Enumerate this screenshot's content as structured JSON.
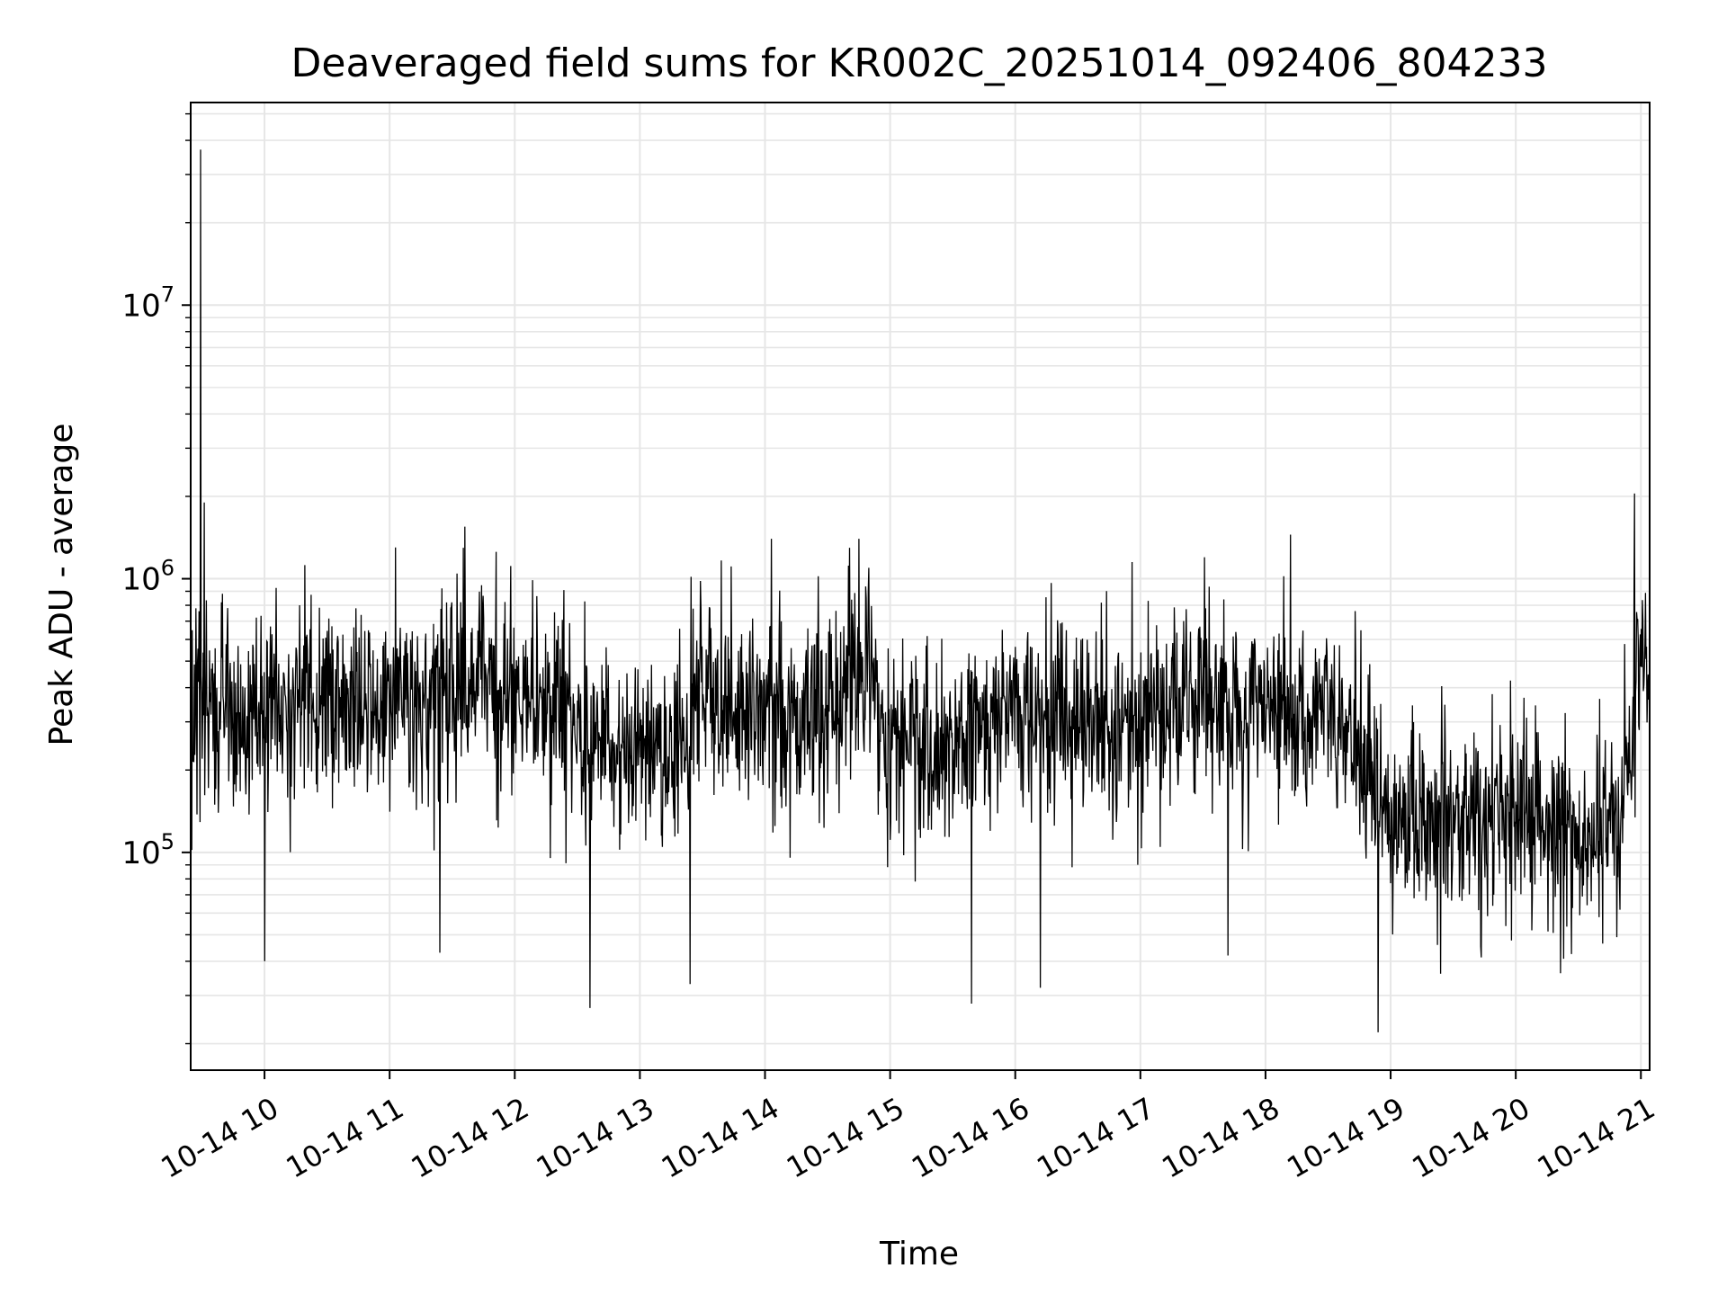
{
  "chart_data": {
    "type": "line",
    "title": "Deaveraged field sums for KR002C_20251014_092406_804233",
    "xlabel": "Time",
    "ylabel": "Peak ADU - average",
    "yscale": "log",
    "ylim": [
      16000,
      55000000
    ],
    "xlim_hours": [
      9.41,
      21.07
    ],
    "x_ticks": [
      {
        "hour": 10,
        "label": "10-14 10"
      },
      {
        "hour": 11,
        "label": "10-14 11"
      },
      {
        "hour": 12,
        "label": "10-14 12"
      },
      {
        "hour": 13,
        "label": "10-14 13"
      },
      {
        "hour": 14,
        "label": "10-14 14"
      },
      {
        "hour": 15,
        "label": "10-14 15"
      },
      {
        "hour": 16,
        "label": "10-14 16"
      },
      {
        "hour": 17,
        "label": "10-14 17"
      },
      {
        "hour": 18,
        "label": "10-14 18"
      },
      {
        "hour": 19,
        "label": "10-14 19"
      },
      {
        "hour": 20,
        "label": "10-14 20"
      },
      {
        "hour": 21,
        "label": "10-14 21"
      }
    ],
    "y_major_ticks": [
      {
        "value": 100000,
        "base": "10",
        "exp": "5"
      },
      {
        "value": 1000000,
        "base": "10",
        "exp": "6"
      },
      {
        "value": 10000000,
        "base": "10",
        "exp": "7"
      }
    ],
    "grid": true,
    "series": [
      {
        "name": "Peak ADU - average",
        "color": "#000000",
        "description": "Noisy time series sampled roughly every 15 s from about 09:24 to 21:04; typical values 2e5-6e5, spike to ~3.7e7 near 09:29, dips down to ~2.2e4 near 18:55, lower level (~1.3e5) between 19:00 and 20:50, rising to ~5e5 after 20:55.",
        "level_profile": [
          {
            "hour": 9.41,
            "median": 320000
          },
          {
            "hour": 10.0,
            "median": 330000
          },
          {
            "hour": 11.0,
            "median": 360000
          },
          {
            "hour": 11.8,
            "median": 420000
          },
          {
            "hour": 12.5,
            "median": 280000
          },
          {
            "hour": 13.2,
            "median": 230000
          },
          {
            "hour": 13.5,
            "median": 380000
          },
          {
            "hour": 14.0,
            "median": 330000
          },
          {
            "hour": 14.5,
            "median": 310000
          },
          {
            "hour": 14.8,
            "median": 520000
          },
          {
            "hour": 14.9,
            "median": 260000
          },
          {
            "hour": 15.5,
            "median": 250000
          },
          {
            "hour": 16.0,
            "median": 330000
          },
          {
            "hour": 16.5,
            "median": 290000
          },
          {
            "hour": 17.0,
            "median": 300000
          },
          {
            "hour": 17.5,
            "median": 360000
          },
          {
            "hour": 18.0,
            "median": 330000
          },
          {
            "hour": 18.6,
            "median": 300000
          },
          {
            "hour": 19.0,
            "median": 140000
          },
          {
            "hour": 19.5,
            "median": 130000
          },
          {
            "hour": 20.0,
            "median": 140000
          },
          {
            "hour": 20.5,
            "median": 120000
          },
          {
            "hour": 20.85,
            "median": 160000
          },
          {
            "hour": 20.95,
            "median": 420000
          },
          {
            "hour": 21.07,
            "median": 560000
          }
        ],
        "notable_points": [
          {
            "hour": 9.49,
            "value": 37000000
          },
          {
            "hour": 9.52,
            "value": 1900000
          },
          {
            "hour": 10.0,
            "value": 40000
          },
          {
            "hour": 11.4,
            "value": 43000
          },
          {
            "hour": 11.6,
            "value": 1550000
          },
          {
            "hour": 12.6,
            "value": 27000
          },
          {
            "hour": 13.4,
            "value": 33000
          },
          {
            "hour": 14.05,
            "value": 1400000
          },
          {
            "hour": 14.75,
            "value": 1400000
          },
          {
            "hour": 15.65,
            "value": 28000
          },
          {
            "hour": 16.2,
            "value": 32000
          },
          {
            "hour": 17.7,
            "value": 42000
          },
          {
            "hour": 18.9,
            "value": 22000
          },
          {
            "hour": 18.2,
            "value": 1450000
          },
          {
            "hour": 19.4,
            "value": 36000
          },
          {
            "hour": 20.95,
            "value": 2050000
          }
        ]
      }
    ]
  }
}
